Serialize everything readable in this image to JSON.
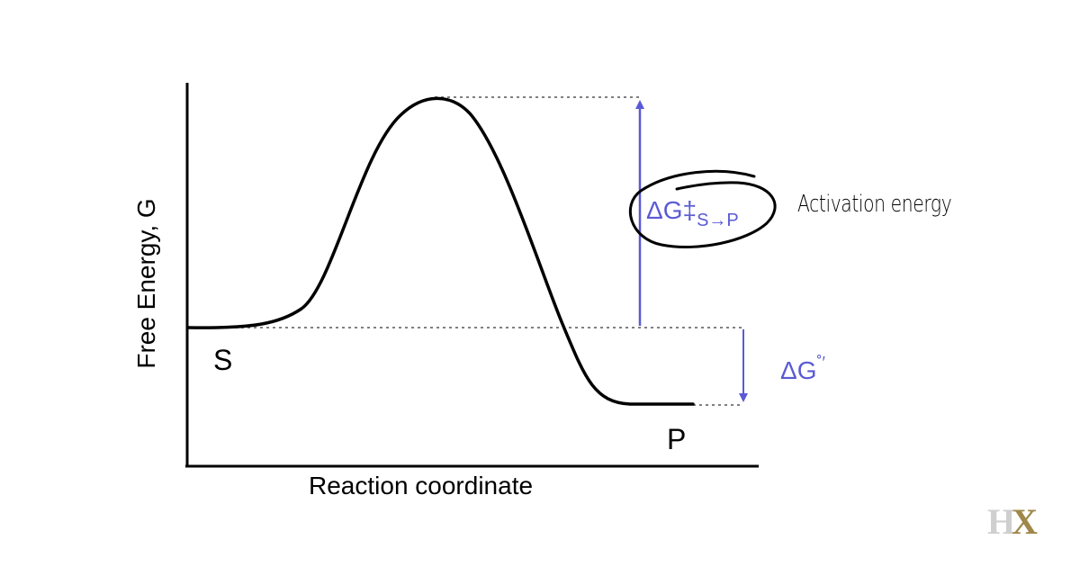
{
  "diagram": {
    "y_axis_label": "Free Energy, G",
    "x_axis_label": "Reaction coordinate",
    "substrate_label": "S",
    "product_label": "P",
    "activation": {
      "symbol": "ΔG‡",
      "subscript": "S→P",
      "annotation": "Activation energy"
    },
    "standard_free_energy": {
      "symbol": "ΔG",
      "superscript": "˚′"
    },
    "colors": {
      "curve": "#000000",
      "arrows": "#5a5ad6",
      "guides": "#808080"
    }
  },
  "logo": {
    "h": "H",
    "x": "X"
  }
}
